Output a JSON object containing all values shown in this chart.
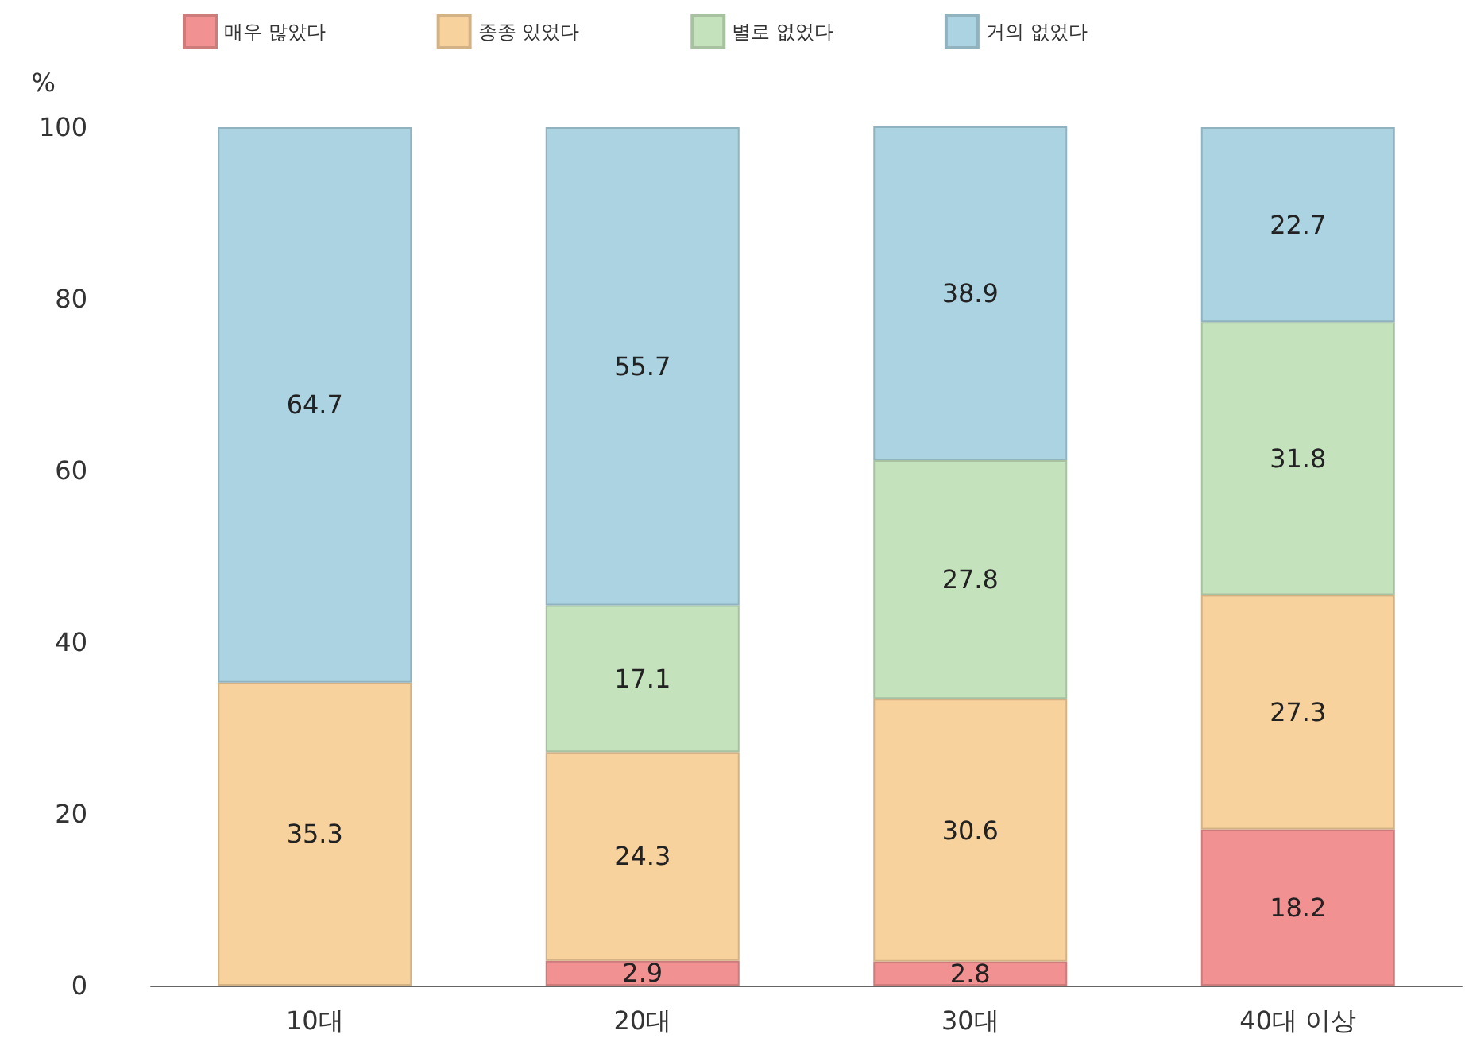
{
  "chart_data": {
    "type": "bar",
    "stacked": true,
    "ylabel": "%",
    "categories": [
      "10대",
      "20대",
      "30대",
      "40대 이상"
    ],
    "series": [
      {
        "name": "매우 많았다",
        "color": "#f19191",
        "values": [
          null,
          2.9,
          2.8,
          18.2
        ]
      },
      {
        "name": "종종 있었다",
        "color": "#f8d29c",
        "values": [
          35.3,
          24.3,
          30.6,
          27.3
        ]
      },
      {
        "name": "별로 없었다",
        "color": "#c4e3bd",
        "values": [
          null,
          17.1,
          27.8,
          31.8
        ]
      },
      {
        "name": "거의 없었다",
        "color": "#abd3e1",
        "values": [
          64.7,
          55.7,
          38.9,
          22.7
        ]
      }
    ],
    "ylim": [
      0,
      100
    ],
    "yticks": [
      0,
      20,
      40,
      60,
      80,
      100
    ],
    "grid": false,
    "legend": "top left",
    "data_labels": true
  }
}
